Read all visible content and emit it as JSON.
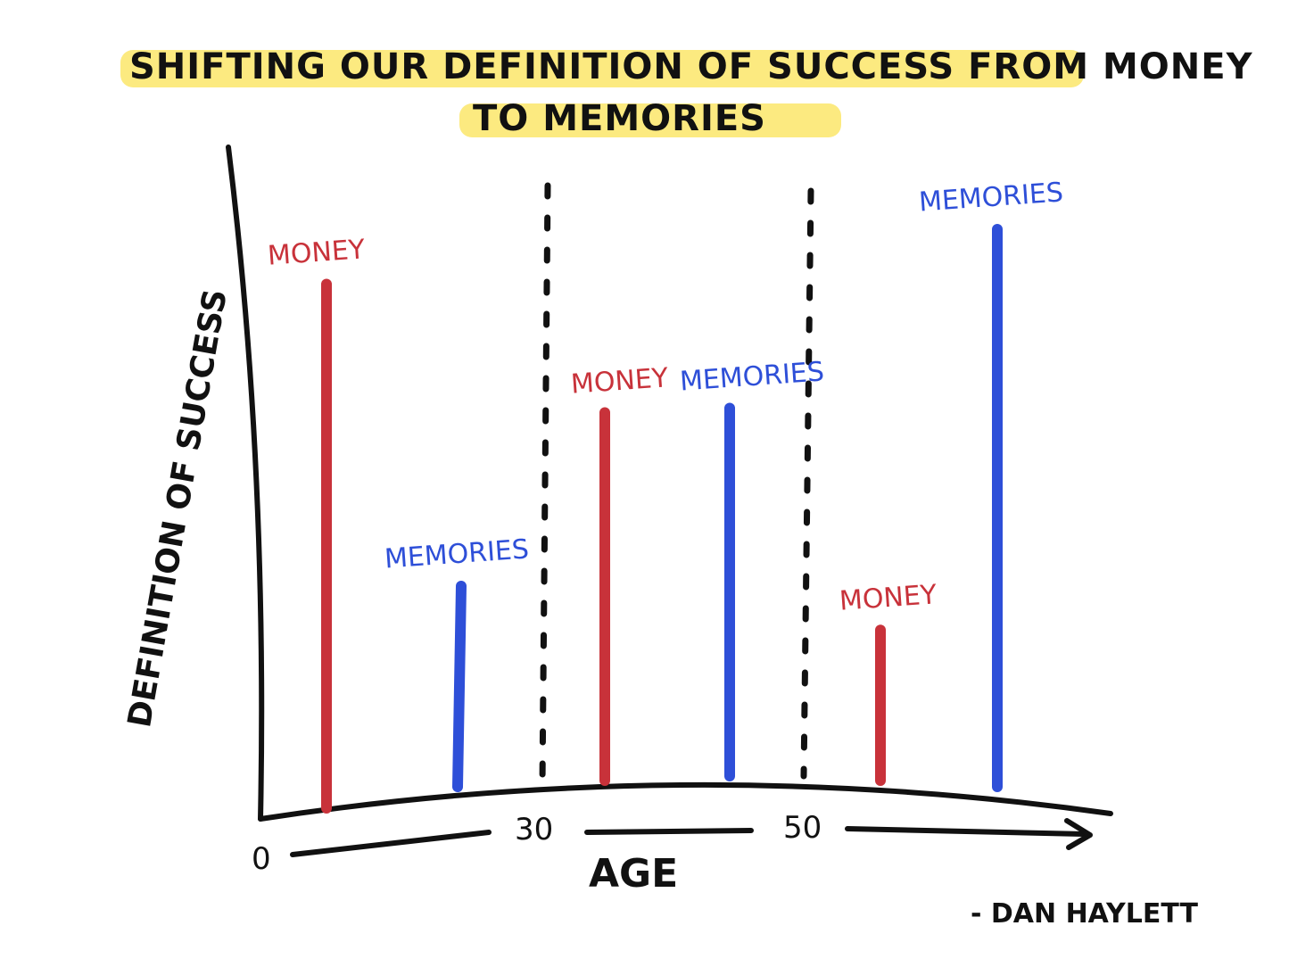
{
  "chart_data": {
    "type": "bar",
    "title": "SHIFTING OUR DEFINITION OF SUCCESS FROM MONEY TO MEMORIES",
    "title_lines": [
      "SHIFTING OUR DEFINITION OF SUCCESS FROM MONEY",
      "TO MEMORIES"
    ],
    "xlabel": "AGE",
    "ylabel": "DEFINITION OF SUCCESS",
    "x_ticks": [
      "0",
      "30",
      "50"
    ],
    "groups": [
      {
        "age_range": "0-30",
        "bars": [
          {
            "label": "MONEY",
            "value": 94
          },
          {
            "label": "MEMORIES",
            "value": 36
          }
        ]
      },
      {
        "age_range": "30-50",
        "bars": [
          {
            "label": "MONEY",
            "value": 66
          },
          {
            "label": "MEMORIES",
            "value": 66
          }
        ]
      },
      {
        "age_range": "50+",
        "bars": [
          {
            "label": "MONEY",
            "value": 27
          },
          {
            "label": "MEMORIES",
            "value": 100
          }
        ]
      }
    ],
    "ylim": [
      0,
      100
    ],
    "colors": {
      "MONEY": "#c8323a",
      "MEMORIES": "#2e4fd8"
    },
    "highlight_color": "#fbe66a",
    "grid": false,
    "legend": "none"
  },
  "signature": "- DAN HAYLETT"
}
